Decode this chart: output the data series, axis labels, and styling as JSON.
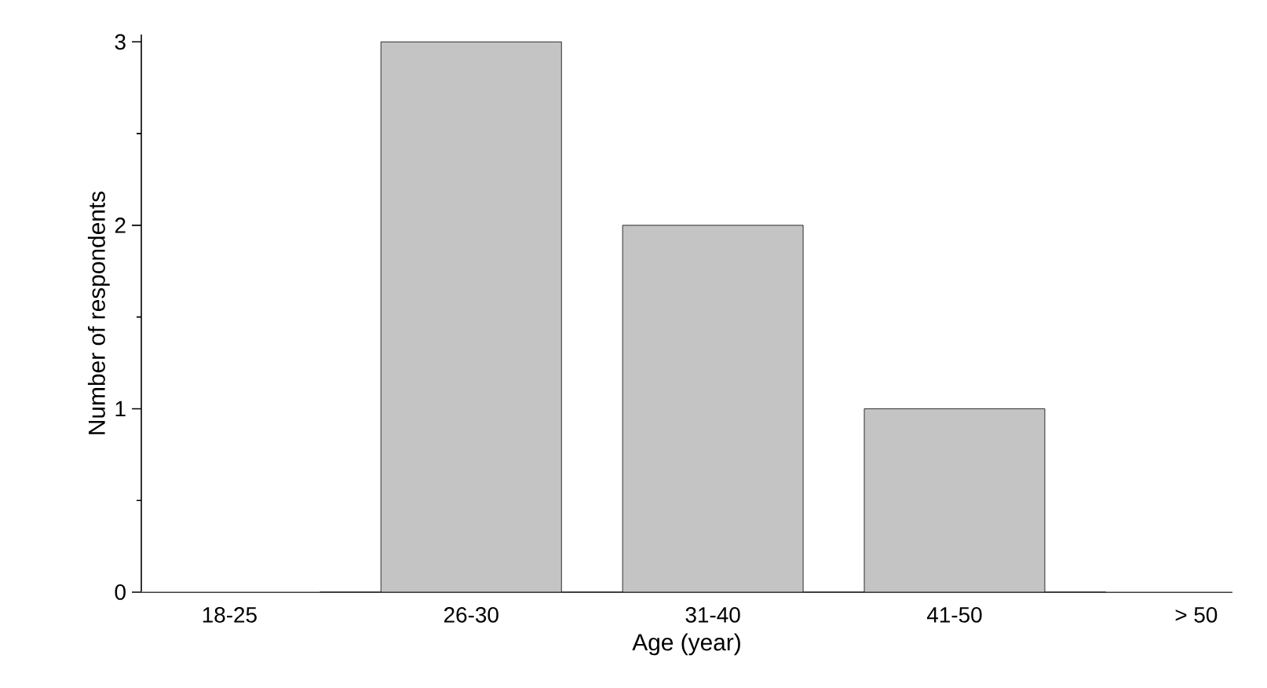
{
  "chart_data": {
    "type": "bar",
    "xlabel": "Age (year)",
    "ylabel": "Number of respondents",
    "categories": [
      "18-25",
      "26-30",
      "31-40",
      "41-50",
      "> 50"
    ],
    "values": [
      0,
      3,
      2,
      1,
      0
    ],
    "color": "#c4c4c4",
    "ylim": [
      0,
      3.04
    ],
    "yticks": [
      0,
      1,
      2,
      3
    ],
    "grid": false
  }
}
